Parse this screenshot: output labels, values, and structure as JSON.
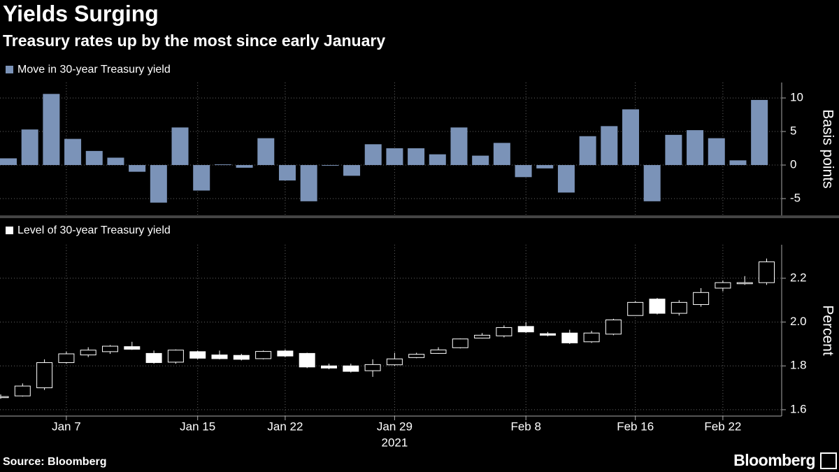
{
  "title": "Yields Surging",
  "subtitle": "Treasury rates up by the most since early January",
  "source": "Source: Bloomberg",
  "brand": "Bloomberg",
  "chart_data": [
    {
      "type": "bar",
      "ylabel": "Basis points",
      "series": [
        {
          "name": "Move in 30-year Treasury yield",
          "color": "#7b93b8",
          "values": [
            1.0,
            5.3,
            10.6,
            3.9,
            2.1,
            1.1,
            -1.0,
            -5.6,
            5.6,
            -3.8,
            0.1,
            -0.4,
            4.0,
            -2.3,
            -5.4,
            -0.1,
            -1.6,
            3.1,
            2.5,
            2.5,
            1.6,
            5.6,
            1.4,
            3.3,
            -1.8,
            -0.5,
            -4.1,
            4.3,
            5.8,
            8.3,
            -5.4,
            4.5,
            5.2,
            4.0,
            0.7,
            9.7
          ]
        }
      ],
      "ylim": [
        -7.5,
        12.3
      ],
      "yticks": [
        -5,
        0,
        5,
        10
      ],
      "grid": true
    },
    {
      "type": "candlestick",
      "ylabel": "Percent",
      "categories": [
        null,
        null,
        null,
        "Jan 7",
        null,
        null,
        null,
        null,
        null,
        "Jan 15",
        null,
        null,
        null,
        "Jan 22",
        null,
        null,
        null,
        null,
        "Jan 29",
        null,
        null,
        null,
        null,
        null,
        "Feb 8",
        null,
        null,
        null,
        null,
        "Feb 16",
        null,
        null,
        null,
        "Feb 22",
        null,
        null
      ],
      "x_year": "2021",
      "series": [
        {
          "name": "Level of 30-year Treasury yield",
          "color": "#ffffff",
          "up_color": "#000000",
          "down_color": "#ffffff",
          "open": [
            1.655,
            1.663,
            1.7,
            1.815,
            1.85,
            1.865,
            1.888,
            1.857,
            1.817,
            1.865,
            1.85,
            1.848,
            1.833,
            1.868,
            1.857,
            1.8,
            1.8,
            1.778,
            1.805,
            1.838,
            1.857,
            1.883,
            1.927,
            1.937,
            1.98,
            1.947,
            1.95,
            1.91,
            1.945,
            2.03,
            2.105,
            2.04,
            2.08,
            2.155,
            2.175,
            2.18
          ],
          "high": [
            1.67,
            1.72,
            1.83,
            1.865,
            1.885,
            1.895,
            1.91,
            1.87,
            1.875,
            1.87,
            1.87,
            1.855,
            1.87,
            1.875,
            1.86,
            1.81,
            1.81,
            1.83,
            1.86,
            1.86,
            1.885,
            1.925,
            1.95,
            1.985,
            2.0,
            1.955,
            1.965,
            1.96,
            2.015,
            2.095,
            2.11,
            2.1,
            2.155,
            2.19,
            2.21,
            2.29
          ],
          "low": [
            1.65,
            1.66,
            1.69,
            1.81,
            1.84,
            1.855,
            1.873,
            1.81,
            1.81,
            1.83,
            1.83,
            1.825,
            1.83,
            1.84,
            1.79,
            1.785,
            1.77,
            1.75,
            1.8,
            1.835,
            1.855,
            1.88,
            1.925,
            1.93,
            1.95,
            1.935,
            1.9,
            1.905,
            1.94,
            2.03,
            2.035,
            2.03,
            2.07,
            2.14,
            2.17,
            2.17
          ],
          "close": [
            1.66,
            1.708,
            1.815,
            1.855,
            1.872,
            1.89,
            1.876,
            1.815,
            1.872,
            1.835,
            1.833,
            1.83,
            1.866,
            1.845,
            1.795,
            1.79,
            1.775,
            1.806,
            1.832,
            1.853,
            1.873,
            1.923,
            1.94,
            1.975,
            1.955,
            1.94,
            1.905,
            1.95,
            2.01,
            2.09,
            2.04,
            2.09,
            2.135,
            2.18,
            2.18,
            2.275
          ]
        }
      ],
      "ylim": [
        1.571,
        2.353
      ],
      "yticks": [
        1.6,
        1.8,
        {
          "value": 2.0,
          "label": "2.0"
        },
        2.2
      ],
      "grid": true
    }
  ]
}
